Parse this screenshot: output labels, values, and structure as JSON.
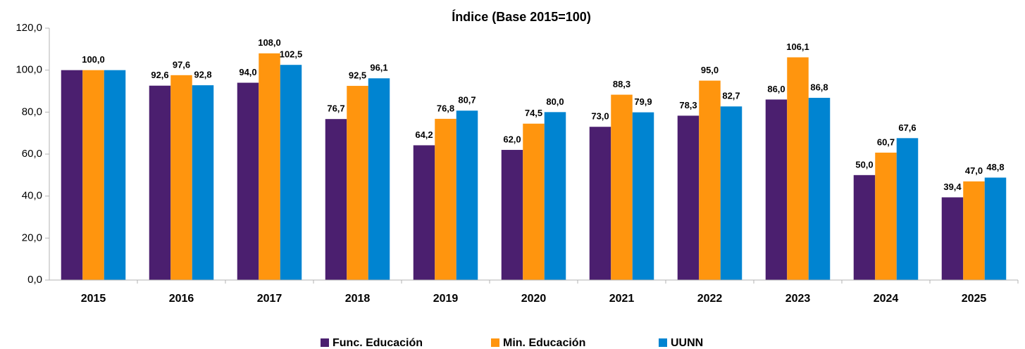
{
  "chart_data": {
    "type": "bar",
    "title": "Índice (Base 2015=100)",
    "categories": [
      "2015",
      "2016",
      "2017",
      "2018",
      "2019",
      "2020",
      "2021",
      "2022",
      "2023",
      "2024",
      "2025"
    ],
    "series": [
      {
        "name": "Func. Educación",
        "color": "#4b1f6f",
        "values": [
          100,
          92.6,
          94,
          76.7,
          64.2,
          62,
          73,
          78.3,
          86,
          50,
          39.4
        ],
        "value_labels": [
          null,
          "92,6",
          "94,0",
          "76,7",
          "64,2",
          "62,0",
          "73,0",
          "78,3",
          "86,0",
          "50,0",
          "39,4"
        ]
      },
      {
        "name": "Min. Educación",
        "color": "#ff950e",
        "values": [
          100,
          97.6,
          108,
          92.5,
          76.8,
          74.5,
          88.3,
          95,
          106.1,
          60.7,
          47
        ],
        "value_labels": [
          "100,0",
          "97,6",
          "108,0",
          "92,5",
          "76,8",
          "74,5",
          "88,3",
          "95,0",
          "106,1",
          "60,7",
          "47,0"
        ]
      },
      {
        "name": "UUNN",
        "color": "#0084d1",
        "values": [
          100,
          92.8,
          102.5,
          96.1,
          80.7,
          80,
          79.9,
          82.7,
          86.8,
          67.6,
          48.8
        ],
        "value_labels": [
          null,
          "92,8",
          "102,5",
          "96,1",
          "80,7",
          "80,0",
          "79,9",
          "82,7",
          "86,8",
          "67,6",
          "48,8"
        ]
      }
    ],
    "ylim": [
      0,
      120
    ],
    "yticks": [
      {
        "value": 0,
        "label": "0,0"
      },
      {
        "value": 20,
        "label": "20,0"
      },
      {
        "value": 40,
        "label": "40,0"
      },
      {
        "value": 60,
        "label": "60,0"
      },
      {
        "value": 80,
        "label": "80,0"
      },
      {
        "value": 100,
        "label": "100,0"
      },
      {
        "value": 120,
        "label": "120,0"
      }
    ],
    "grid": false,
    "legend": "bottom"
  }
}
